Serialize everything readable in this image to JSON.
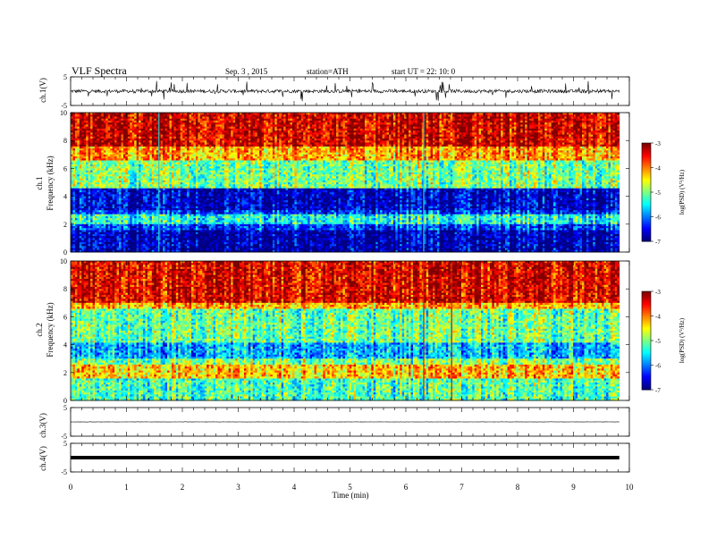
{
  "header": {
    "title": "VLF  Spectra",
    "date": "Sep. 3  , 2015",
    "station": "station=ATH",
    "start": "start  UT  =   22: 10: 0"
  },
  "chart_data": [
    {
      "type": "line",
      "panel": "ch1-waveform",
      "ylabel": "ch.1(V)",
      "ylim": [
        -5,
        5
      ],
      "yticks": [
        "5",
        "-5"
      ],
      "description_values": {
        "baseline": 0.0,
        "typical_amplitude": 1.2,
        "spike_amplitude": 4.0
      }
    },
    {
      "type": "heatmap",
      "panel": "ch1-spectrogram",
      "ylabel_top": "ch.1",
      "ylabel": "Frequency  (kHz)",
      "ylim": [
        0,
        10
      ],
      "yticks": [
        "0",
        "2",
        "4",
        "6",
        "8",
        "10"
      ],
      "colorbar": {
        "label": "log(PSD) (V²/Hz)",
        "range": [
          -7,
          -3
        ],
        "ticks": [
          "-3",
          "-4",
          "-5",
          "-6",
          "-7"
        ]
      },
      "profile": {
        "low_band_khz": 1.5,
        "cyan_band_khz": 2.4,
        "dark_band_khz": [
          3.0,
          4.5
        ],
        "green_band_khz": [
          4.5,
          6.5
        ],
        "red_above_khz": 7.5
      },
      "markers_min": [
        1.58,
        6.32
      ]
    },
    {
      "type": "heatmap",
      "panel": "ch2-spectrogram",
      "ylabel_top": "ch.2",
      "ylabel": "Frequency  (kHz)",
      "ylim": [
        0,
        10
      ],
      "yticks": [
        "0",
        "2",
        "4",
        "6",
        "8",
        "10"
      ],
      "colorbar": {
        "label": "log(PSD) (V²/Hz)",
        "range": [
          -7,
          -3
        ],
        "ticks": [
          "-3",
          "-4",
          "-5",
          "-6",
          "-7"
        ]
      },
      "profile": {
        "yellow_band_khz": [
          1.5,
          2.6
        ],
        "blue_band_khz": [
          3.0,
          4.2
        ],
        "green_band_khz": [
          4.2,
          6.5
        ],
        "red_above_khz": 7.0
      },
      "markers_min": [
        6.32,
        6.82
      ]
    },
    {
      "type": "line",
      "panel": "ch3-waveform",
      "ylabel": "ch.3(V)",
      "ylim": [
        -5,
        5
      ],
      "yticks": [
        "5",
        "-5"
      ],
      "description_values": {
        "baseline": 0.0,
        "typical_amplitude": 0.1
      }
    },
    {
      "type": "line",
      "panel": "ch4-waveform",
      "ylabel": "ch.4(V)",
      "ylim": [
        -5,
        5
      ],
      "yticks": [
        "5",
        "-5"
      ],
      "description_values": {
        "baseline": 0.0,
        "typical_amplitude": 0.3
      }
    }
  ],
  "xaxis": {
    "label": "Time  (min)",
    "xlim": [
      0,
      10
    ],
    "data_end_min": 9.82,
    "ticks": [
      "0",
      "1",
      "2",
      "3",
      "4",
      "5",
      "6",
      "7",
      "8",
      "9",
      "10"
    ]
  }
}
